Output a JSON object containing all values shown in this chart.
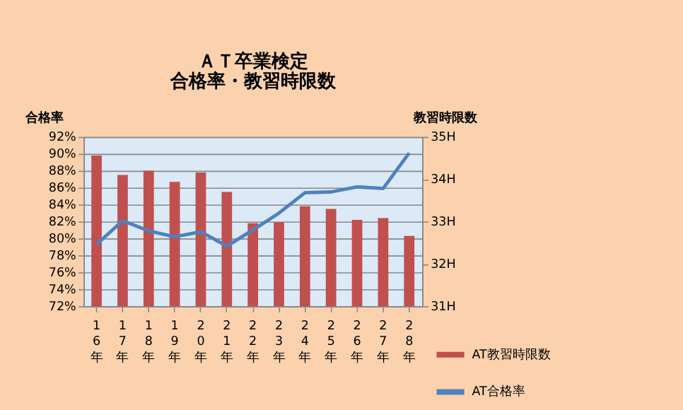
{
  "chart_data": {
    "type": "bar",
    "title": "ＡＴ卒業検定",
    "subtitle": "合格率・教習時限数",
    "ylabel": "合格率",
    "y2label": "教習時限数",
    "categories": [
      "16年",
      "17年",
      "18年",
      "19年",
      "20年",
      "21年",
      "22年",
      "23年",
      "24年",
      "25年",
      "26年",
      "27年",
      "28年"
    ],
    "series": [
      {
        "name": "AT教習時限数",
        "type": "bar",
        "axis": "y2",
        "color": "#c0504d",
        "values": [
          34.56,
          34.1,
          34.2,
          33.94,
          34.16,
          33.7,
          32.96,
          32.98,
          33.36,
          33.3,
          33.04,
          33.08,
          32.66
        ]
      },
      {
        "name": "AT合格率",
        "type": "line",
        "color": "#4f81bd",
        "values": [
          79.3,
          82.1,
          80.9,
          80.2,
          80.8,
          79.1,
          81.0,
          83.0,
          85.4,
          85.5,
          86.1,
          85.9,
          90.1
        ]
      }
    ],
    "ylim": [
      72,
      92
    ],
    "yticks": [
      {
        "value": 72,
        "label": "72%"
      },
      {
        "value": 74,
        "label": "74%"
      },
      {
        "value": 76,
        "label": "76%"
      },
      {
        "value": 78,
        "label": "78%"
      },
      {
        "value": 80,
        "label": "80%"
      },
      {
        "value": 82,
        "label": "82%"
      },
      {
        "value": 84,
        "label": "84%"
      },
      {
        "value": 86,
        "label": "86%"
      },
      {
        "value": 88,
        "label": "88%"
      },
      {
        "value": 90,
        "label": "90%"
      },
      {
        "value": 92,
        "label": "92%"
      }
    ],
    "y2lim": [
      31,
      35
    ],
    "y2ticks": [
      {
        "value": 31,
        "label": "31H"
      },
      {
        "value": 32,
        "label": "32H"
      },
      {
        "value": 33,
        "label": "33H"
      },
      {
        "value": 34,
        "label": "34H"
      },
      {
        "value": 35,
        "label": "35H"
      }
    ],
    "grid": "y",
    "legend": "right",
    "marker": "none",
    "line_style": "solid"
  }
}
